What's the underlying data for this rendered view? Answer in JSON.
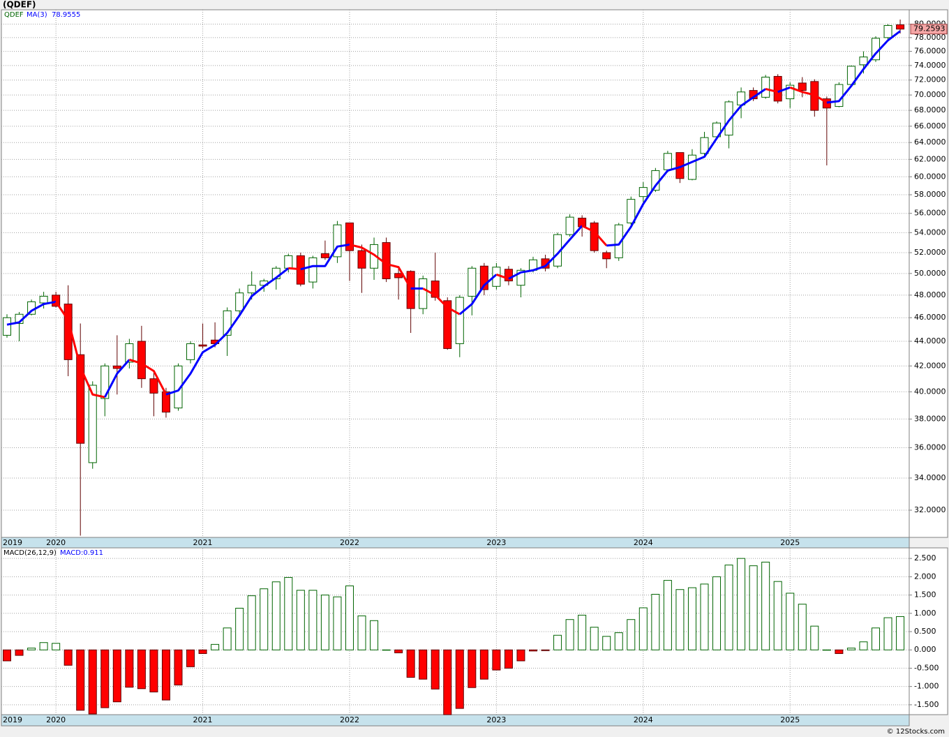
{
  "chart_data": [
    {
      "type": "candlestick",
      "title": "(QDEF)",
      "symbol": "QDEF",
      "log": true,
      "grid": true,
      "categories": [
        "2019",
        null,
        null,
        null,
        "2020",
        null,
        null,
        null,
        null,
        null,
        null,
        null,
        null,
        null,
        null,
        null,
        "2021",
        null,
        null,
        null,
        null,
        null,
        null,
        null,
        null,
        null,
        null,
        null,
        "2022",
        null,
        null,
        null,
        null,
        null,
        null,
        null,
        null,
        null,
        null,
        null,
        "2023",
        null,
        null,
        null,
        null,
        null,
        null,
        null,
        null,
        null,
        null,
        null,
        "2024",
        null,
        null,
        null,
        null,
        null,
        null,
        null,
        null,
        null,
        null,
        null,
        "2025",
        null,
        null,
        null,
        null,
        null,
        null,
        null,
        null,
        null
      ],
      "open": [
        44.5,
        45.5,
        46.3,
        47.3,
        48.0,
        47.2,
        42.9,
        35.0,
        39.5,
        42.0,
        42.3,
        44.0,
        41.0,
        40.0,
        38.8,
        42.5,
        43.7,
        44.1,
        44.5,
        46.6,
        48.2,
        48.9,
        49.5,
        50.5,
        51.7,
        49.2,
        51.9,
        51.6,
        55.0,
        52.2,
        50.5,
        53.0,
        50.0,
        50.2,
        46.8,
        49.3,
        47.5,
        43.8,
        47.9,
        50.7,
        48.8,
        50.4,
        48.9,
        50.3,
        51.4,
        50.7,
        53.8,
        55.5,
        55.0,
        52.0,
        51.5,
        55.0,
        57.8,
        58.5,
        60.8,
        62.8,
        59.7,
        62.7,
        64.7,
        64.9,
        68.7,
        70.6,
        69.7,
        72.5,
        69.5,
        71.6,
        71.8,
        69.5,
        68.5,
        71.4,
        74.1,
        74.8,
        78.0,
        79.9
      ],
      "high": [
        46.3,
        46.5,
        47.6,
        48.3,
        48.3,
        48.9,
        45.5,
        40.8,
        42.2,
        44.5,
        44.2,
        45.3,
        41.5,
        40.3,
        42.2,
        44.0,
        45.5,
        45.6,
        46.9,
        48.6,
        50.2,
        49.5,
        50.7,
        51.9,
        52.0,
        51.7,
        53.2,
        55.2,
        55.0,
        52.8,
        53.5,
        53.5,
        50.5,
        50.3,
        49.8,
        52.0,
        47.8,
        48.0,
        50.7,
        51.0,
        51.0,
        50.7,
        50.5,
        51.6,
        51.8,
        54.0,
        55.9,
        55.8,
        55.2,
        52.2,
        55.0,
        57.8,
        59.4,
        61.0,
        63.0,
        62.8,
        63.2,
        65.3,
        66.6,
        69.3,
        71.0,
        71.0,
        72.7,
        72.8,
        71.7,
        72.4,
        72.1,
        69.8,
        71.7,
        74.0,
        76.0,
        78.2,
        80.0,
        80.7
      ],
      "low": [
        44.3,
        44.0,
        46.2,
        46.8,
        46.9,
        41.2,
        30.5,
        34.6,
        38.2,
        39.8,
        41.8,
        40.3,
        38.2,
        38.1,
        38.6,
        42.2,
        43.4,
        43.5,
        42.8,
        46.2,
        47.6,
        48.3,
        48.5,
        50.1,
        48.8,
        48.6,
        51.3,
        51.0,
        49.3,
        48.2,
        49.4,
        49.2,
        47.6,
        44.7,
        46.3,
        47.5,
        43.3,
        42.7,
        46.2,
        48.0,
        48.5,
        48.9,
        47.8,
        50.1,
        50.2,
        50.5,
        53.6,
        53.6,
        52.0,
        50.5,
        51.2,
        54.8,
        57.2,
        58.3,
        60.5,
        59.3,
        59.6,
        62.3,
        64.5,
        63.3,
        67.0,
        69.2,
        69.5,
        68.9,
        68.3,
        69.7,
        67.2,
        61.3,
        68.4,
        71.2,
        72.9,
        74.5,
        77.5,
        78.6
      ],
      "close": [
        46.0,
        46.3,
        47.4,
        47.9,
        47.0,
        42.5,
        36.3,
        40.5,
        42.0,
        41.8,
        43.8,
        41.0,
        39.9,
        38.5,
        42.0,
        43.8,
        43.6,
        43.8,
        46.6,
        48.2,
        48.9,
        49.3,
        50.5,
        51.7,
        49.0,
        51.5,
        51.5,
        54.8,
        52.2,
        50.5,
        52.8,
        49.5,
        49.6,
        46.8,
        49.5,
        47.8,
        43.4,
        47.8,
        50.5,
        48.5,
        50.6,
        49.3,
        50.3,
        51.3,
        50.5,
        53.8,
        55.6,
        54.6,
        52.2,
        51.4,
        54.8,
        57.5,
        58.8,
        60.7,
        62.7,
        59.8,
        62.5,
        64.6,
        66.4,
        69.1,
        70.4,
        69.5,
        72.4,
        69.2,
        71.3,
        70.6,
        68.0,
        68.3,
        71.4,
        73.9,
        75.2,
        77.9,
        79.8,
        79.2593
      ],
      "up_color": "#006400",
      "down_color": "#ff0000",
      "price_label_color": "#f4a6a6",
      "ma": {
        "name": "MA(3)",
        "up_color": "#0000ff",
        "down_color": "#ff0000",
        "values": [
          45.4,
          45.6,
          46.6,
          47.2,
          47.4,
          45.8,
          41.9,
          39.8,
          39.6,
          41.4,
          42.5,
          42.2,
          41.6,
          39.8,
          40.1,
          41.4,
          43.1,
          43.7,
          44.7,
          46.2,
          47.9,
          48.8,
          49.6,
          50.5,
          50.4,
          50.7,
          50.7,
          52.6,
          52.8,
          52.5,
          51.8,
          50.9,
          50.6,
          48.6,
          48.6,
          48.0,
          46.9,
          46.3,
          47.2,
          48.9,
          49.9,
          49.5,
          50.1,
          50.3,
          50.7,
          51.9,
          53.3,
          54.7,
          54.1,
          52.7,
          52.8,
          54.6,
          57.0,
          59.0,
          60.7,
          61.1,
          61.7,
          62.3,
          64.5,
          66.7,
          68.6,
          69.7,
          70.8,
          70.4,
          71.0,
          70.4,
          70.0,
          69.0,
          69.2,
          71.2,
          73.5,
          75.7,
          77.6,
          78.9555
        ]
      },
      "ylim": [
        30.4,
        82.2
      ],
      "yticks": [
        {
          "value": 32,
          "label": "32.0000"
        },
        {
          "value": 34,
          "label": "34.0000"
        },
        {
          "value": 36,
          "label": "36.0000"
        },
        {
          "value": 38,
          "label": "38.0000"
        },
        {
          "value": 40,
          "label": "40.0000"
        },
        {
          "value": 42,
          "label": "42.0000"
        },
        {
          "value": 44,
          "label": "44.0000"
        },
        {
          "value": 46,
          "label": "46.0000"
        },
        {
          "value": 48,
          "label": "48.0000"
        },
        {
          "value": 50,
          "label": "50.0000"
        },
        {
          "value": 52,
          "label": "52.0000"
        },
        {
          "value": 54,
          "label": "54.0000"
        },
        {
          "value": 56,
          "label": "56.0000"
        },
        {
          "value": 58,
          "label": "58.0000"
        },
        {
          "value": 60,
          "label": "60.0000"
        },
        {
          "value": 62,
          "label": "62.0000"
        },
        {
          "value": 64,
          "label": "64.0000"
        },
        {
          "value": 66,
          "label": "66.0000"
        },
        {
          "value": 68,
          "label": "68.0000"
        },
        {
          "value": 70,
          "label": "70.0000"
        },
        {
          "value": 72,
          "label": "72.0000"
        },
        {
          "value": 74,
          "label": "74.0000"
        },
        {
          "value": 76,
          "label": "76.0000"
        },
        {
          "value": 78,
          "label": "78.0000"
        },
        {
          "value": 80,
          "label": "80.0000"
        }
      ]
    },
    {
      "type": "bar",
      "title": "MACD(26,12,9)",
      "legend_text": "MACD:0.911",
      "grid": true,
      "credit": "© 12Stocks.com",
      "up_color": "#006400",
      "down_color": "#ff0000",
      "values": [
        -0.3,
        -0.15,
        0.05,
        0.2,
        0.18,
        -0.42,
        -1.65,
        -1.75,
        -1.58,
        -1.42,
        -1.02,
        -1.06,
        -1.15,
        -1.37,
        -0.96,
        -0.46,
        -0.1,
        0.15,
        0.6,
        1.14,
        1.48,
        1.67,
        1.86,
        1.98,
        1.63,
        1.63,
        1.5,
        1.45,
        1.75,
        0.93,
        0.8,
        0,
        -0.08,
        -0.75,
        -0.8,
        -1.07,
        -1.77,
        -1.6,
        -1.03,
        -0.8,
        -0.55,
        -0.5,
        -0.3,
        -0.03,
        -0.02,
        0.4,
        0.83,
        0.95,
        0.62,
        0.37,
        0.47,
        0.83,
        1.15,
        1.52,
        1.9,
        1.65,
        1.7,
        1.8,
        2.0,
        2.32,
        2.5,
        2.3,
        2.4,
        1.87,
        1.55,
        1.25,
        0.65,
        0,
        -0.1,
        0.05,
        0.22,
        0.6,
        0.88,
        0.911
      ],
      "ylim": [
        -1.77,
        2.77
      ],
      "yticks": [
        {
          "value": -1.5,
          "label": "-1.500"
        },
        {
          "value": -1,
          "label": "-1.000"
        },
        {
          "value": -0.5,
          "label": "-0.500"
        },
        {
          "value": 0,
          "label": "0.000"
        },
        {
          "value": 0.5,
          "label": "0.500"
        },
        {
          "value": 1,
          "label": "1.000"
        },
        {
          "value": 1.5,
          "label": "1.500"
        },
        {
          "value": 2,
          "label": "2.000"
        },
        {
          "value": 2.5,
          "label": "2.500"
        }
      ]
    }
  ]
}
